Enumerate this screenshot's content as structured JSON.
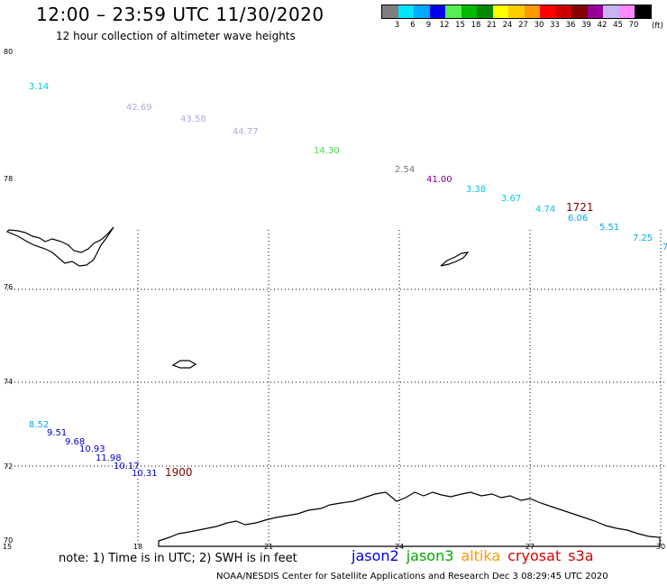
{
  "header": {
    "title": "12:00 – 23:59 UTC 11/30/2020",
    "subtitle": "12 hour collection of altimeter wave heights"
  },
  "legend": {
    "colors": [
      "#7f7f7f",
      "#00e5ff",
      "#00aaff",
      "#0000ee",
      "#55ee55",
      "#00bb00",
      "#008800",
      "#ffff00",
      "#ffcc00",
      "#ff9900",
      "#ff0000",
      "#cc0000",
      "#880000",
      "#990099",
      "#c8b4f0",
      "#ff88ff",
      "#000000"
    ],
    "labels": [
      "3",
      "6",
      "9",
      "12",
      "15",
      "18",
      "21",
      "24",
      "27",
      "30",
      "33",
      "36",
      "39",
      "42",
      "45",
      "70"
    ],
    "unit": "(ft)"
  },
  "map": {
    "lat_labels": [
      "80",
      "78",
      "76",
      "74",
      "72",
      "70"
    ],
    "lon_labels": [
      "15",
      "18",
      "21",
      "24",
      "27",
      "30"
    ],
    "observations": [
      {
        "label": "3.14",
        "color": "#00c8e6"
      },
      {
        "label": "42.69",
        "color": "#b4a8e6"
      },
      {
        "label": "43.58",
        "color": "#b4a8e6"
      },
      {
        "label": "44.77",
        "color": "#b4a8e6"
      },
      {
        "label": "14.30",
        "color": "#44dd44"
      },
      {
        "label": "2.54",
        "color": "#777777"
      },
      {
        "label": "41.00",
        "color": "#880088"
      },
      {
        "label": "3.38",
        "color": "#00c8e6"
      },
      {
        "label": "3.67",
        "color": "#00c8e6"
      },
      {
        "label": "4.74",
        "color": "#00c8e6"
      },
      {
        "label": "1721",
        "color": "#880000"
      },
      {
        "label": "6.06",
        "color": "#00aaee"
      },
      {
        "label": "5.51",
        "color": "#00aaee"
      },
      {
        "label": "7.25",
        "color": "#00aaee"
      },
      {
        "label": "7",
        "color": "#00aaee"
      },
      {
        "label": "8.52",
        "color": "#00aaee"
      },
      {
        "label": "9.51",
        "color": "#0000cc"
      },
      {
        "label": "9.68",
        "color": "#0000cc"
      },
      {
        "label": "10.93",
        "color": "#0000cc"
      },
      {
        "label": "11.98",
        "color": "#0000cc"
      },
      {
        "label": "10.17",
        "color": "#0000cc"
      },
      {
        "label": "10.31",
        "color": "#0000cc"
      },
      {
        "label": "1900",
        "color": "#880000"
      }
    ]
  },
  "note": "note: 1) Time is in UTC; 2) SWH is in feet",
  "satellites": [
    {
      "name": "jason2",
      "color": "#0000dd"
    },
    {
      "name": "jason3",
      "color": "#00aa00"
    },
    {
      "name": "altika",
      "color": "#ff9900"
    },
    {
      "name": "cryosat",
      "color": "#dd0000"
    },
    {
      "name": "s3a",
      "color": "#cc0000"
    }
  ],
  "footer": "NOAA/NESDIS Center for Satellite Applications and Research   Dec  3 08:29:45 UTC 2020"
}
